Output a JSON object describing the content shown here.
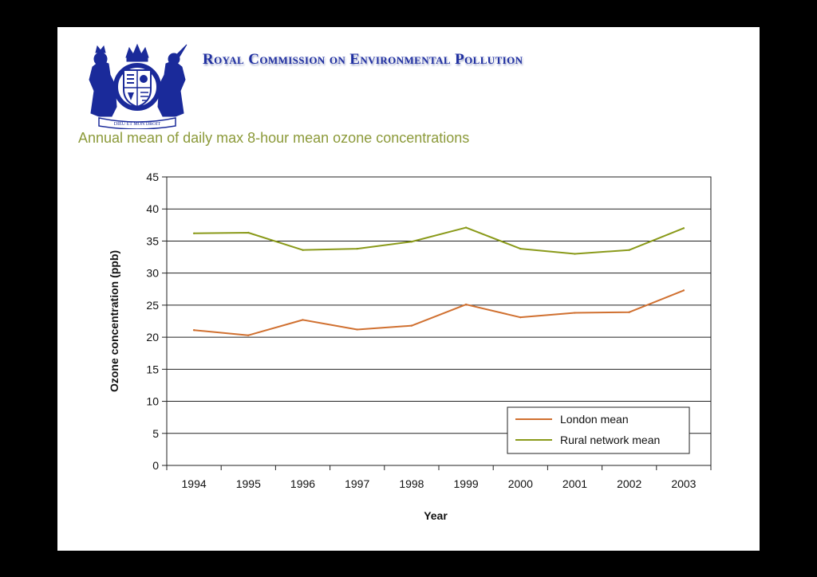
{
  "header": {
    "organization": "Royal Commission on Environmental Pollution",
    "crest_motto": "DIEU ET MON DROIT"
  },
  "colors": {
    "london": "#d07030",
    "rural": "#8a9a1a",
    "title_blue": "#1f2fa0",
    "subtitle_olive": "#8c9a3a"
  },
  "chart_data": {
    "type": "line",
    "title": "Annual mean of daily max 8-hour mean ozone concentrations",
    "xlabel": "Year",
    "ylabel": "Ozone concentration (ppb)",
    "categories": [
      "1994",
      "1995",
      "1996",
      "1997",
      "1998",
      "1999",
      "2000",
      "2001",
      "2002",
      "2003"
    ],
    "ylim": [
      0,
      45
    ],
    "yticks": [
      0,
      5,
      10,
      15,
      20,
      25,
      30,
      35,
      40,
      45
    ],
    "grid": true,
    "legend_position": "bottom-right",
    "series": [
      {
        "name": "London mean",
        "color": "#d07030",
        "values": [
          21.1,
          20.3,
          22.7,
          21.2,
          21.8,
          25.1,
          23.1,
          23.8,
          23.9,
          27.3
        ]
      },
      {
        "name": "Rural network mean",
        "color": "#8a9a1a",
        "values": [
          36.2,
          36.3,
          33.6,
          33.8,
          34.9,
          37.1,
          33.8,
          33.0,
          33.6,
          37.0
        ]
      }
    ]
  }
}
